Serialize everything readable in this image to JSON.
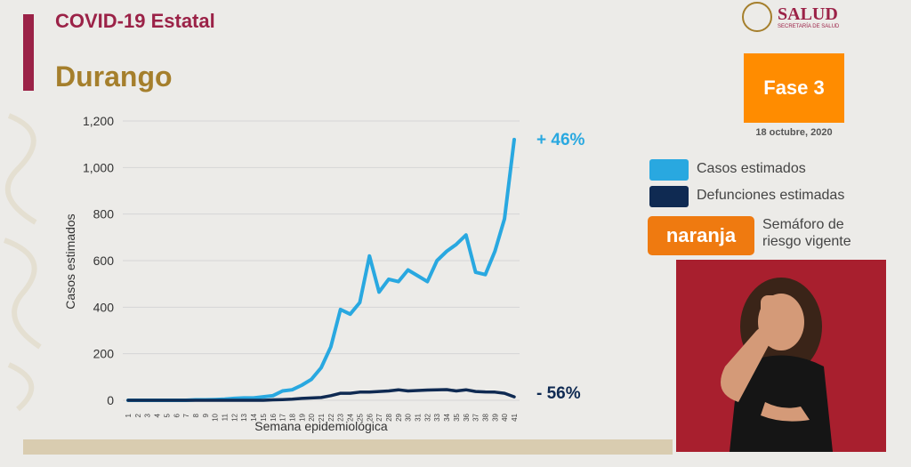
{
  "header": {
    "title": "COVID-19 Estatal",
    "state": "Durango"
  },
  "logo": {
    "name": "SALUD",
    "subtitle": "SECRETARÍA DE SALUD"
  },
  "phase": {
    "label": "Fase 3",
    "date": "18 octubre, 2020",
    "color": "#ff8c00"
  },
  "legend": {
    "cases_label": "Casos estimados",
    "deaths_label": "Defunciones estimadas",
    "cases_color": "#29a8e0",
    "deaths_color": "#0f2a52"
  },
  "semaforo": {
    "badge": "naranja",
    "text_line1": "Semáforo de",
    "text_line2": "riesgo vigente",
    "color": "#ef7a10"
  },
  "chart_data": {
    "type": "line",
    "ylabel": "Casos estimados",
    "xlabel": "Semana epidemiológica",
    "ylim": [
      0,
      1200
    ],
    "yticks": [
      "0",
      "200",
      "400",
      "600",
      "800",
      "1,000",
      "1,200"
    ],
    "x": [
      1,
      2,
      3,
      4,
      5,
      6,
      7,
      8,
      9,
      10,
      11,
      12,
      13,
      14,
      15,
      16,
      17,
      18,
      19,
      20,
      21,
      22,
      23,
      24,
      25,
      26,
      27,
      28,
      29,
      30,
      31,
      32,
      33,
      34,
      35,
      36,
      37,
      38,
      39,
      40,
      41
    ],
    "series": [
      {
        "name": "Casos estimados",
        "color": "#29a8e0",
        "values": [
          0,
          0,
          0,
          0,
          0,
          0,
          0,
          2,
          2,
          3,
          5,
          8,
          10,
          10,
          15,
          20,
          40,
          45,
          65,
          90,
          140,
          230,
          390,
          370,
          420,
          620,
          465,
          520,
          510,
          560,
          535,
          510,
          600,
          640,
          670,
          710,
          550,
          540,
          640,
          780,
          1120
        ]
      },
      {
        "name": "Defunciones estimadas",
        "color": "#0f2a52",
        "values": [
          0,
          0,
          0,
          0,
          0,
          0,
          0,
          0,
          0,
          0,
          0,
          0,
          0,
          0,
          0,
          2,
          3,
          5,
          8,
          10,
          12,
          20,
          30,
          30,
          35,
          35,
          38,
          40,
          45,
          40,
          42,
          44,
          45,
          46,
          40,
          45,
          38,
          36,
          35,
          30,
          15
        ]
      }
    ],
    "annotations": [
      {
        "text": "+ 46%",
        "series": "Casos estimados"
      },
      {
        "text": "- 56%",
        "series": "Defunciones estimadas"
      }
    ],
    "grid": true
  }
}
